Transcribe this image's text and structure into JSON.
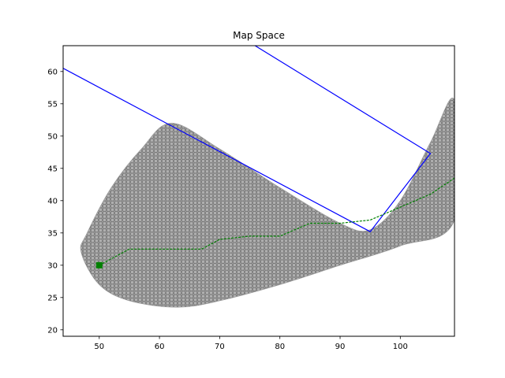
{
  "chart_data": {
    "type": "line",
    "title": "Map Space",
    "xlabel": "",
    "ylabel": "",
    "xlim": [
      44,
      109
    ],
    "ylim": [
      19,
      64
    ],
    "xticks": [
      50,
      60,
      70,
      80,
      90,
      100
    ],
    "yticks": [
      20,
      25,
      30,
      35,
      40,
      45,
      50,
      55,
      60
    ],
    "grid": false,
    "series": [
      {
        "kind": "path",
        "color": "#0000ff",
        "x": [
          44,
          95,
          105,
          75
        ],
        "y": [
          60.5,
          35.2,
          47.3,
          64.5
        ]
      },
      {
        "kind": "trajectory",
        "color": "#008000",
        "x": [
          50,
          55,
          60,
          67,
          70,
          75,
          80,
          85,
          90,
          95,
          100,
          105,
          109
        ],
        "y": [
          30,
          32.5,
          32.5,
          32.5,
          34,
          34.5,
          34.5,
          36.5,
          36.5,
          37,
          39,
          41,
          43.5
        ]
      },
      {
        "kind": "start-point",
        "color": "#008000",
        "x": [
          50
        ],
        "y": [
          30
        ]
      },
      {
        "kind": "explored-region",
        "color": "#000000",
        "upper_x": [
          48,
          52,
          57,
          62,
          70,
          80,
          90,
          95,
          100,
          105,
          109
        ],
        "upper_y": [
          35,
          42,
          48,
          52,
          48,
          42,
          36.5,
          35.5,
          40,
          49,
          55.5
        ],
        "lower_x": [
          109,
          100,
          90,
          80,
          70,
          63,
          55,
          50,
          47
        ],
        "lower_y": [
          37,
          33,
          30,
          27,
          24.5,
          23.5,
          24.5,
          27,
          32
        ]
      }
    ]
  }
}
